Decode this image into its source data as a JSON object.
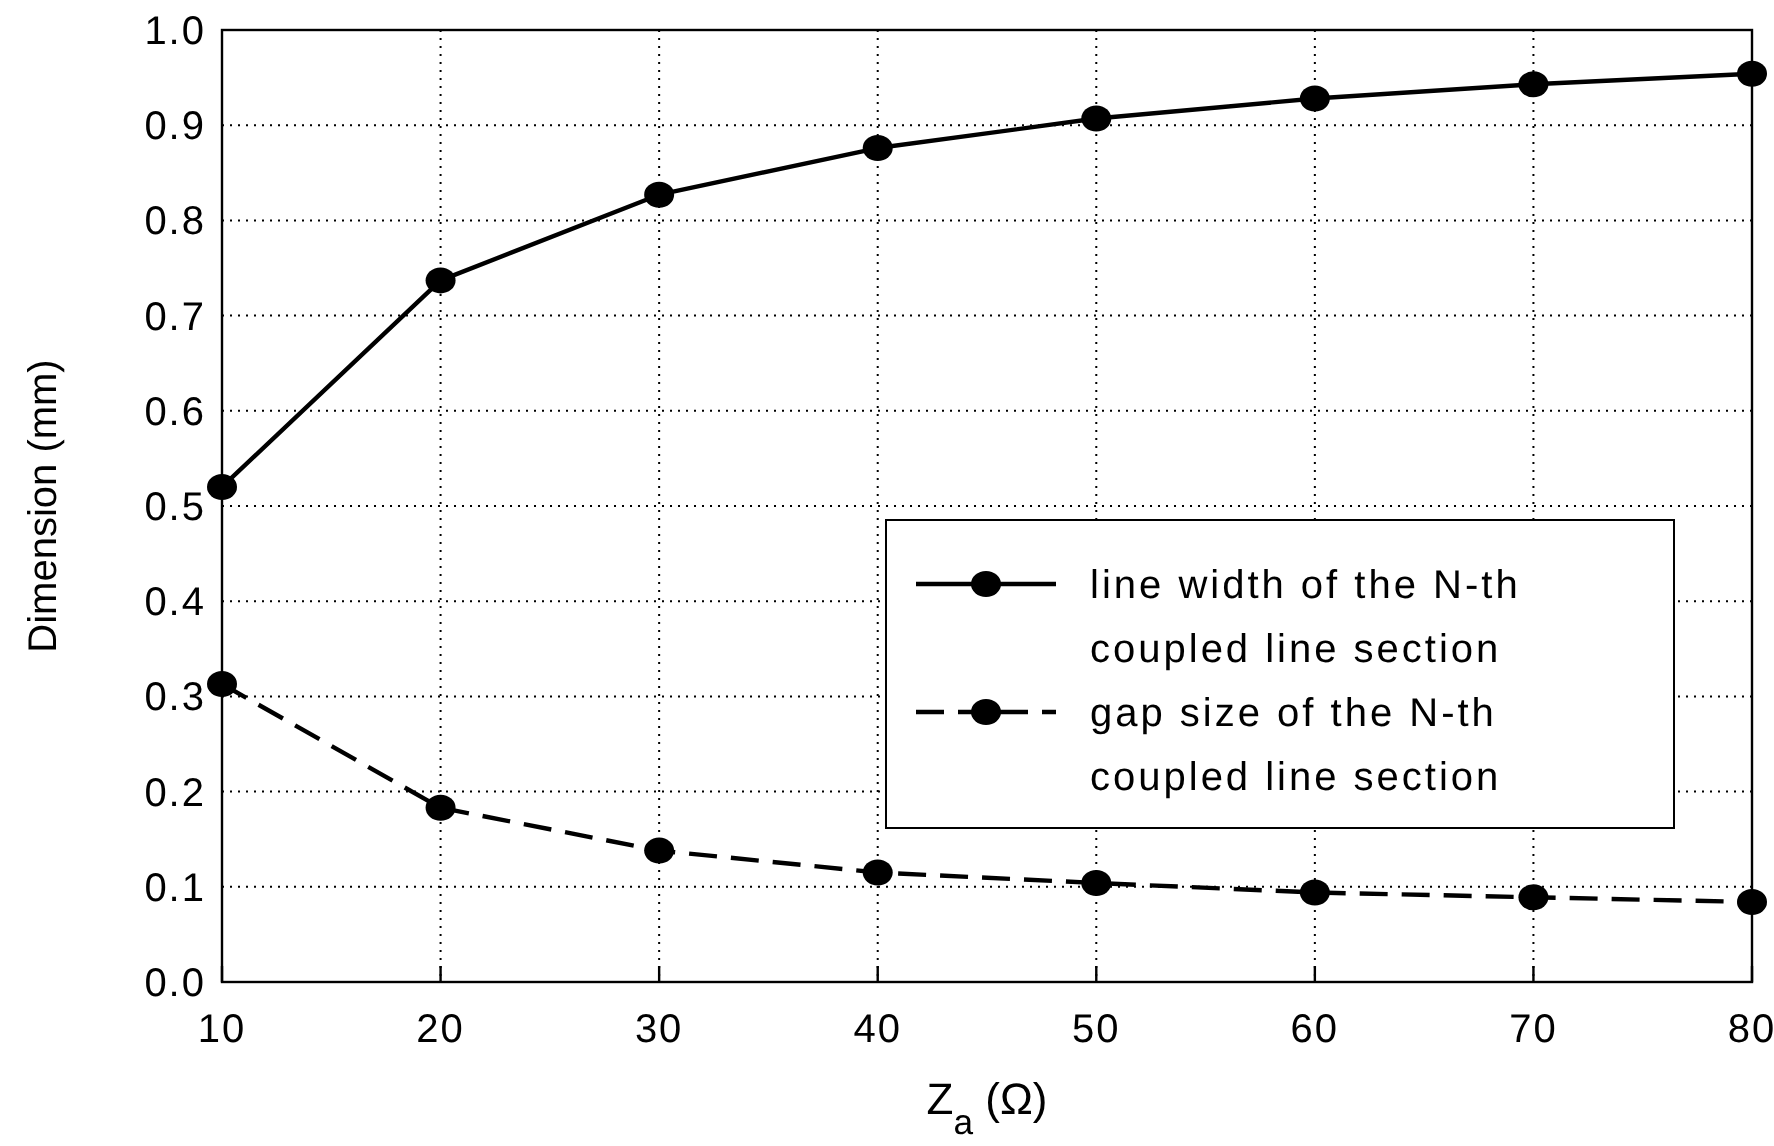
{
  "chart_data": {
    "type": "line",
    "xlabel": "Z$_{a}$ (Ω)",
    "ylabel": "Dimension (mm)",
    "x": [
      10,
      20,
      30,
      40,
      50,
      60,
      70,
      80
    ],
    "series": [
      {
        "name": "line width of the N-th coupled line section",
        "color": "#000000",
        "line_style": "solid",
        "values": [
          0.52,
          0.737,
          0.827,
          0.876,
          0.907,
          0.928,
          0.943,
          0.954
        ]
      },
      {
        "name": "gap size of the N-th coupled line section",
        "color": "#000000",
        "line_style": "dashed",
        "values": [
          0.313,
          0.183,
          0.138,
          0.115,
          0.104,
          0.094,
          0.089,
          0.084
        ]
      }
    ],
    "xlim": [
      10,
      80
    ],
    "xticks": [
      10,
      20,
      30,
      40,
      50,
      60,
      70,
      80
    ],
    "ylim": [
      0,
      1
    ],
    "yticks": [
      {
        "value": 0,
        "label": "0.0"
      },
      {
        "value": 0.1,
        "label": "0.1"
      },
      {
        "value": 0.2,
        "label": "0.2"
      },
      {
        "value": 0.3,
        "label": "0.3"
      },
      {
        "value": 0.4,
        "label": "0.4"
      },
      {
        "value": 0.5,
        "label": "0.5"
      },
      {
        "value": 0.6,
        "label": "0.6"
      },
      {
        "value": 0.7,
        "label": "0.7"
      },
      {
        "value": 0.8,
        "label": "0.8"
      },
      {
        "value": 0.9,
        "label": "0.9"
      },
      {
        "value": 1,
        "label": "1.0"
      }
    ],
    "grid": true,
    "legend": "right",
    "marker": "circle"
  }
}
